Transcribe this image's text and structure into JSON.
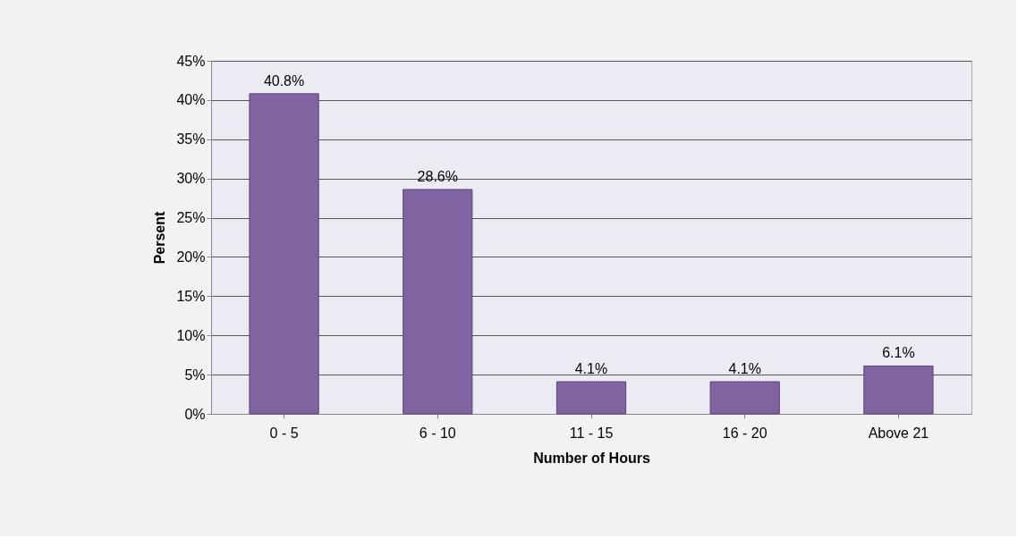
{
  "chart_data": {
    "type": "bar",
    "xlabel": "Number of Hours",
    "ylabel": "Persent",
    "categories": [
      "0 - 5",
      "6 - 10",
      "11 - 15",
      "16 - 20",
      "Above 21"
    ],
    "values": [
      40.8,
      28.6,
      4.1,
      4.1,
      6.1
    ],
    "value_labels": [
      "40.8%",
      "28.6%",
      "4.1%",
      "4.1%",
      "6.1%"
    ],
    "color": "#8064a2",
    "ylim": [
      0,
      45
    ],
    "yticks": [
      {
        "value": 0,
        "label": "0%"
      },
      {
        "value": 5,
        "label": "5%"
      },
      {
        "value": 10,
        "label": "10%"
      },
      {
        "value": 15,
        "label": "15%"
      },
      {
        "value": 20,
        "label": "20%"
      },
      {
        "value": 25,
        "label": "25%"
      },
      {
        "value": 30,
        "label": "30%"
      },
      {
        "value": 35,
        "label": "35%"
      },
      {
        "value": 40,
        "label": "40%"
      },
      {
        "value": 45,
        "label": "45%"
      }
    ],
    "grid": "y"
  }
}
